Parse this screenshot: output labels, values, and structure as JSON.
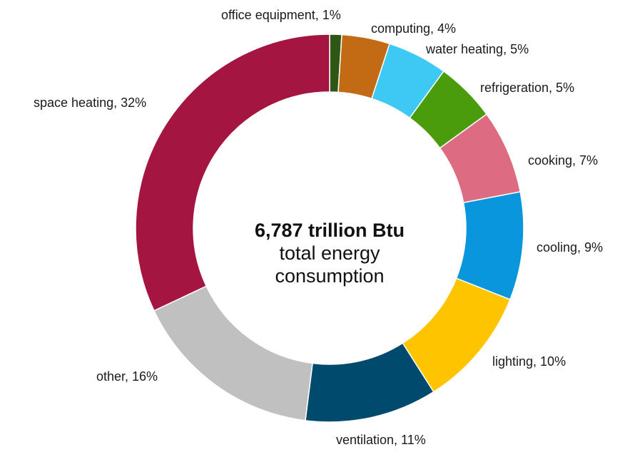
{
  "chart_data": {
    "type": "pie",
    "variant": "donut",
    "center_text": {
      "line1": "6,787 trillion Btu",
      "line2": "total energy",
      "line3": "consumption"
    },
    "slices": [
      {
        "name": "office equipment",
        "value": 1,
        "label": "office equipment, 1%",
        "color": "#2e5716"
      },
      {
        "name": "computing",
        "value": 4,
        "label": "computing, 4%",
        "color": "#c26a14"
      },
      {
        "name": "water heating",
        "value": 5,
        "label": "water heating, 5%",
        "color": "#3ec8f4"
      },
      {
        "name": "refrigeration",
        "value": 5,
        "label": "refrigeration, 5%",
        "color": "#4a9c0c"
      },
      {
        "name": "cooking",
        "value": 7,
        "label": "cooking, 7%",
        "color": "#dd6b82"
      },
      {
        "name": "cooling",
        "value": 9,
        "label": "cooling, 9%",
        "color": "#0a96dc"
      },
      {
        "name": "lighting",
        "value": 10,
        "label": "lighting, 10%",
        "color": "#fec400"
      },
      {
        "name": "ventilation",
        "value": 11,
        "label": "ventilation, 11%",
        "color": "#004a6e"
      },
      {
        "name": "other",
        "value": 16,
        "label": "other, 16%",
        "color": "#c0c0c0"
      },
      {
        "name": "space heating",
        "value": 32,
        "label": "space heating, 32%",
        "color": "#a51541"
      }
    ],
    "start": "12 o'clock",
    "direction": "clockwise",
    "legend": "none (labels beside slices)"
  }
}
